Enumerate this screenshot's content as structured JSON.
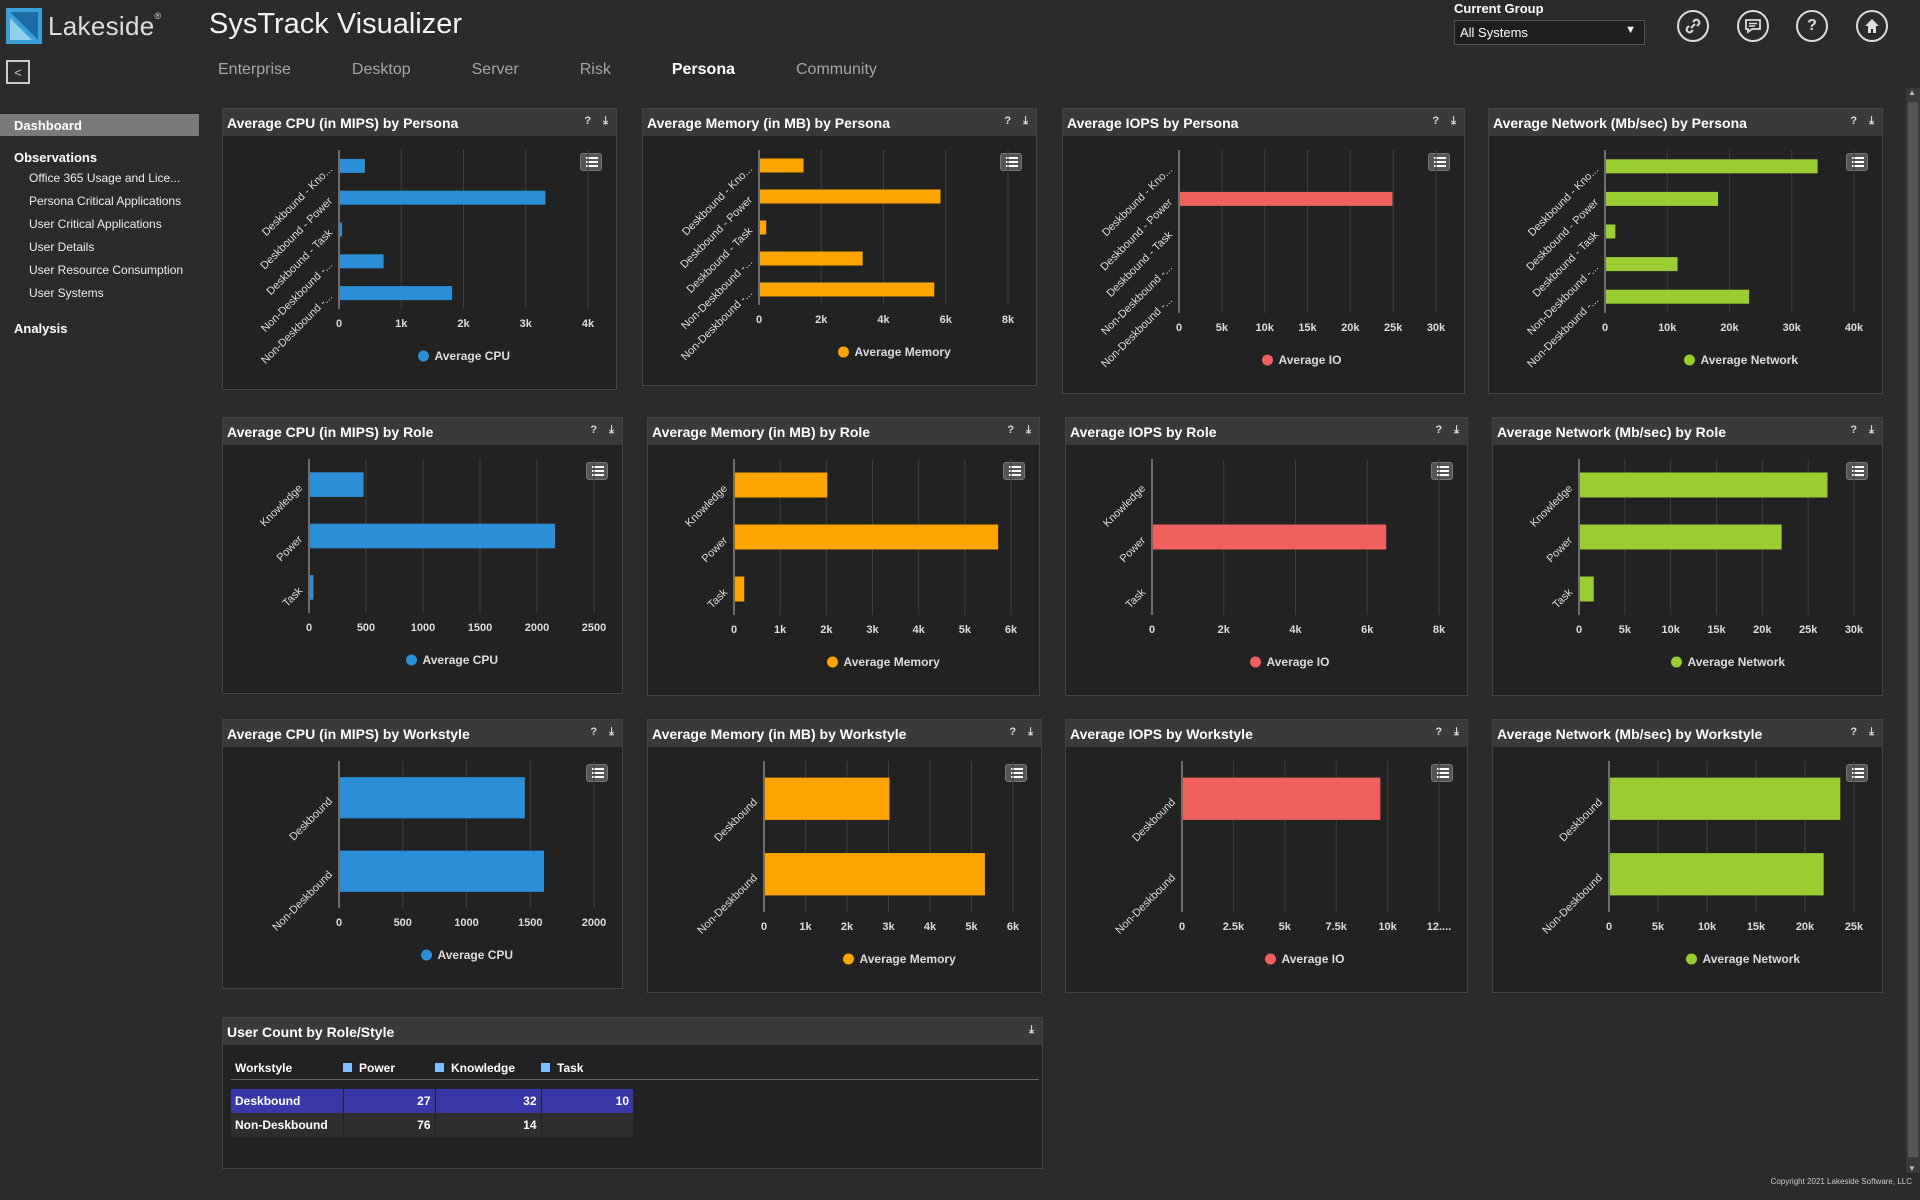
{
  "header": {
    "logo_text": "Lakeside",
    "logo_mark": "®",
    "app_title": "SysTrack Visualizer",
    "group_label": "Current Group",
    "group_value": "All Systems",
    "icons": [
      "link-icon",
      "chat-icon",
      "help-icon",
      "home-icon"
    ]
  },
  "nav": {
    "tabs": [
      "Enterprise",
      "Desktop",
      "Server",
      "Risk",
      "Persona",
      "Community"
    ],
    "active": "Persona"
  },
  "sidebar": {
    "dashboard": "Dashboard",
    "observations": "Observations",
    "items": [
      "Office 365 Usage and Lice...",
      "Persona Critical Applications",
      "User Critical Applications",
      "User Details",
      "User Resource Consumption",
      "User Systems"
    ],
    "analysis": "Analysis"
  },
  "colors": {
    "cpu": "#2a8fd6",
    "memory": "#ffa500",
    "io": "#f0605d",
    "network": "#9acd32"
  },
  "chart_data": [
    {
      "type": "bar",
      "title": "Average CPU (in MIPS) by Persona",
      "categories": [
        "Deskbound - Kno...",
        "Deskbound - Power",
        "Deskbound - Task",
        "Non-Deskbound -...",
        "Non-Deskbound -..."
      ],
      "values": [
        400,
        3300,
        20,
        700,
        1800
      ],
      "ticks": [
        "0",
        "1k",
        "2k",
        "3k",
        "4k"
      ],
      "xmax": 4000,
      "legend": "Average CPU",
      "color": "cpu"
    },
    {
      "type": "bar",
      "title": "Average Memory (in MB) by Persona",
      "categories": [
        "Deskbound - Kno...",
        "Deskbound - Power",
        "Deskbound - Task",
        "Non-Deskbound -...",
        "Non-Deskbound -..."
      ],
      "values": [
        1400,
        5800,
        200,
        3300,
        5600
      ],
      "ticks": [
        "0",
        "2k",
        "4k",
        "6k",
        "8k"
      ],
      "xmax": 8000,
      "legend": "Average Memory",
      "color": "memory"
    },
    {
      "type": "bar",
      "title": "Average IOPS by Persona",
      "categories": [
        "Deskbound - Kno...",
        "Deskbound - Power",
        "Deskbound - Task",
        "Non-Deskbound -...",
        "Non-Deskbound -..."
      ],
      "values": [
        0,
        24800,
        0,
        0,
        0
      ],
      "ticks": [
        "0",
        "5k",
        "10k",
        "15k",
        "20k",
        "25k",
        "30k"
      ],
      "xmax": 30000,
      "legend": "Average IO",
      "color": "io"
    },
    {
      "type": "bar",
      "title": "Average Network (Mb/sec) by Persona",
      "categories": [
        "Deskbound - Kno...",
        "Deskbound - Power",
        "Deskbound - Task",
        "Non-Deskbound -...",
        "Non-Deskbound -..."
      ],
      "values": [
        34000,
        18000,
        1500,
        11500,
        23000
      ],
      "ticks": [
        "0",
        "10k",
        "20k",
        "30k",
        "40k"
      ],
      "xmax": 40000,
      "legend": "Average Network",
      "color": "network"
    },
    {
      "type": "bar",
      "title": "Average CPU (in MIPS) by Role",
      "categories": [
        "Knowledge",
        "Power",
        "Task"
      ],
      "values": [
        470,
        2150,
        30
      ],
      "ticks": [
        "0",
        "500",
        "1000",
        "1500",
        "2000",
        "2500"
      ],
      "xmax": 2500,
      "legend": "Average CPU",
      "color": "cpu"
    },
    {
      "type": "bar",
      "title": "Average Memory (in MB) by Role",
      "categories": [
        "Knowledge",
        "Power",
        "Task"
      ],
      "values": [
        2000,
        5700,
        200
      ],
      "ticks": [
        "0",
        "1k",
        "2k",
        "3k",
        "4k",
        "5k",
        "6k"
      ],
      "xmax": 6000,
      "legend": "Average Memory",
      "color": "memory"
    },
    {
      "type": "bar",
      "title": "Average IOPS by Role",
      "categories": [
        "Knowledge",
        "Power",
        "Task"
      ],
      "values": [
        0,
        6500,
        0
      ],
      "ticks": [
        "0",
        "2k",
        "4k",
        "6k",
        "8k"
      ],
      "xmax": 8000,
      "legend": "Average IO",
      "color": "io"
    },
    {
      "type": "bar",
      "title": "Average Network (Mb/sec) by Role",
      "categories": [
        "Knowledge",
        "Power",
        "Task"
      ],
      "values": [
        27000,
        22000,
        1500
      ],
      "ticks": [
        "0",
        "5k",
        "10k",
        "15k",
        "20k",
        "25k",
        "30k"
      ],
      "xmax": 30000,
      "legend": "Average Network",
      "color": "network"
    },
    {
      "type": "bar",
      "title": "Average CPU (in MIPS) by Workstyle",
      "categories": [
        "Deskbound",
        "Non-Deskbound"
      ],
      "values": [
        1450,
        1600
      ],
      "ticks": [
        "0",
        "500",
        "1000",
        "1500",
        "2000"
      ],
      "xmax": 2000,
      "legend": "Average CPU",
      "color": "cpu"
    },
    {
      "type": "bar",
      "title": "Average Memory (in MB) by Workstyle",
      "categories": [
        "Deskbound",
        "Non-Deskbound"
      ],
      "values": [
        3000,
        5300
      ],
      "ticks": [
        "0",
        "1k",
        "2k",
        "3k",
        "4k",
        "5k",
        "6k"
      ],
      "xmax": 6000,
      "legend": "Average Memory",
      "color": "memory"
    },
    {
      "type": "bar",
      "title": "Average IOPS by Workstyle",
      "categories": [
        "Deskbound",
        "Non-Deskbound"
      ],
      "values": [
        9600,
        0
      ],
      "ticks": [
        "0",
        "2.5k",
        "5k",
        "7.5k",
        "10k",
        "12...."
      ],
      "xmax": 12500,
      "legend": "Average IO",
      "color": "io"
    },
    {
      "type": "bar",
      "title": "Average Network (Mb/sec) by Workstyle",
      "categories": [
        "Deskbound",
        "Non-Deskbound"
      ],
      "values": [
        23500,
        21800
      ],
      "ticks": [
        "0",
        "5k",
        "10k",
        "15k",
        "20k",
        "25k"
      ],
      "xmax": 25000,
      "legend": "Average Network",
      "color": "network"
    }
  ],
  "user_count": {
    "title": "User Count by Role/Style",
    "columns": [
      "Workstyle",
      "Power",
      "Knowledge",
      "Task"
    ],
    "rows": [
      {
        "label": "Deskbound",
        "values": [
          "27",
          "32",
          "10"
        ]
      },
      {
        "label": "Non-Deskbound",
        "values": [
          "76",
          "14",
          ""
        ]
      }
    ]
  },
  "copyright": "Copyright 2021 Lakeside Software, LLC"
}
